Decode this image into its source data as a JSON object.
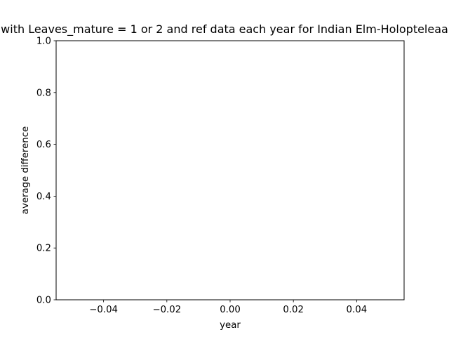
{
  "chart_data": {
    "type": "line",
    "title": "with Leaves_mature = 1 or 2 and ref data each year for Indian Elm-Holopteleaa",
    "xlabel": "year",
    "ylabel": "average difference",
    "x": [],
    "series": [],
    "xlim": [
      -0.055,
      0.055
    ],
    "ylim": [
      0.0,
      1.0
    ],
    "xticks": [
      -0.04,
      -0.02,
      0.0,
      0.02,
      0.04
    ],
    "xtick_labels": [
      "−0.04",
      "−0.02",
      "0.00",
      "0.02",
      "0.04"
    ],
    "yticks": [
      0.0,
      0.2,
      0.4,
      0.6,
      0.8,
      1.0
    ],
    "ytick_labels": [
      "0.0",
      "0.2",
      "0.4",
      "0.6",
      "0.8",
      "1.0"
    ],
    "grid": false,
    "legend": false,
    "colors": {
      "axes": "#000000",
      "background": "#ffffff",
      "text": "#000000"
    }
  }
}
